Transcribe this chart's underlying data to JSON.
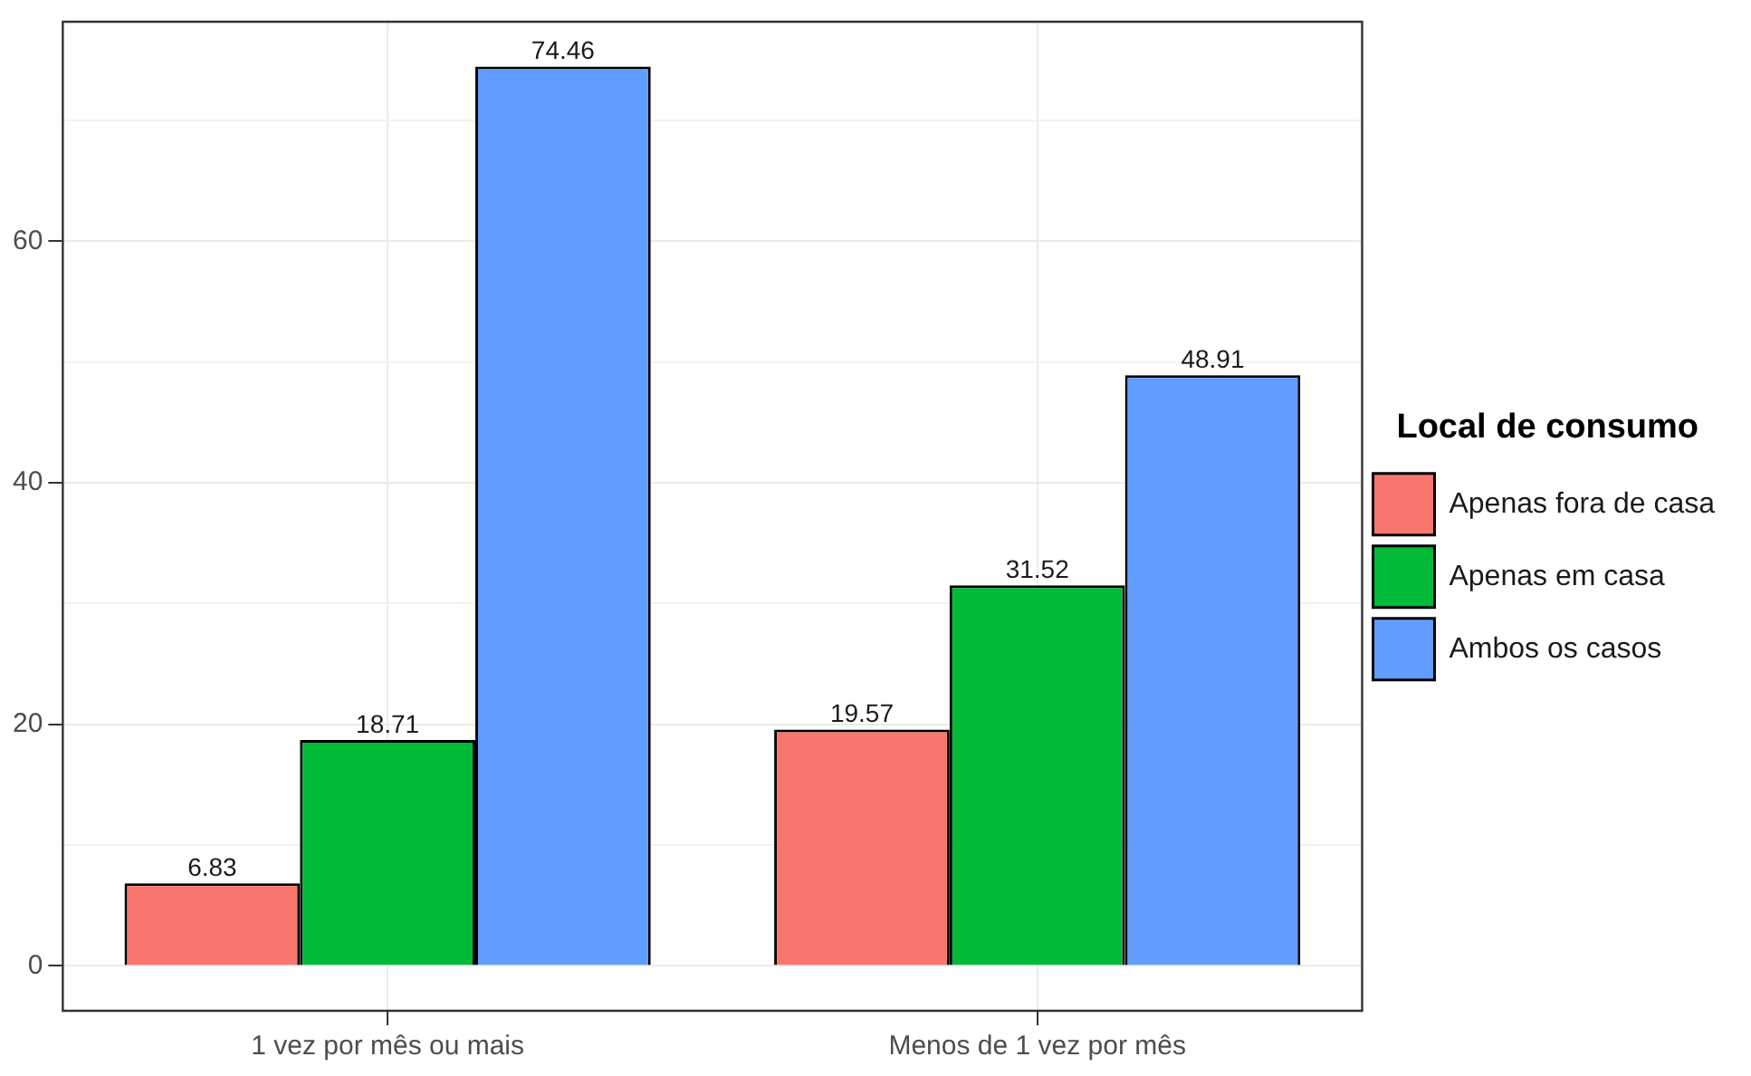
{
  "chart_data": {
    "type": "bar",
    "categories": [
      "1 vez por mês ou mais",
      "Menos de 1 vez por mês"
    ],
    "legend_title": "Local de consumo",
    "series": [
      {
        "name": "Apenas fora de casa",
        "color": "#f8766d",
        "values": [
          6.83,
          19.57
        ]
      },
      {
        "name": "Apenas em casa",
        "color": "#00ba38",
        "values": [
          18.71,
          31.52
        ]
      },
      {
        "name": "Ambos os casos",
        "color": "#619cff",
        "values": [
          74.46,
          48.91
        ]
      }
    ],
    "ylim": [
      -3.72,
      78.18
    ],
    "yticks": [
      0,
      {
        "value": 10,
        "label": null
      },
      20,
      {
        "value": 30,
        "label": null
      },
      40,
      {
        "value": 50,
        "label": null
      },
      60,
      {
        "value": 70,
        "label": null
      }
    ],
    "grid": true,
    "legend": "right",
    "data_labels": true
  }
}
